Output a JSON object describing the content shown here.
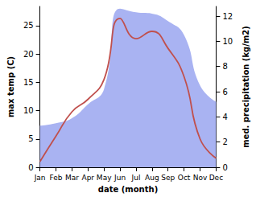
{
  "chart_data": {
    "type": "line",
    "categories": [
      "Jan",
      "Feb",
      "Mar",
      "Apr",
      "May",
      "Jun",
      "Jul",
      "Aug",
      "Sep",
      "Oct",
      "Nov",
      "Dec"
    ],
    "xlabel": "date (month)",
    "ylabel": "max temp (C)",
    "y2label": "med. precipitation (kg/m2)",
    "ylim": [
      0,
      28.4
    ],
    "yticks": [
      0,
      5,
      10,
      15,
      20,
      25
    ],
    "y2lim": [
      0,
      12.77
    ],
    "y2ticks": [
      0,
      2,
      4,
      6,
      8,
      10,
      12
    ],
    "grid": false,
    "series": [
      {
        "type": "area",
        "axis": "y2",
        "color": "#a9b3f2",
        "values": [
          3.3,
          3.5,
          3.9,
          5.0,
          6.2,
          12.6,
          12.3,
          12.2,
          11.6,
          10.5,
          6.5,
          5.2
        ]
      },
      {
        "type": "line",
        "color": "#c0504d",
        "values": [
          1.0,
          5.5,
          9.8,
          12.0,
          15.5,
          26.3,
          22.7,
          24.0,
          21.0,
          16.0,
          5.0,
          1.6
        ]
      }
    ]
  }
}
